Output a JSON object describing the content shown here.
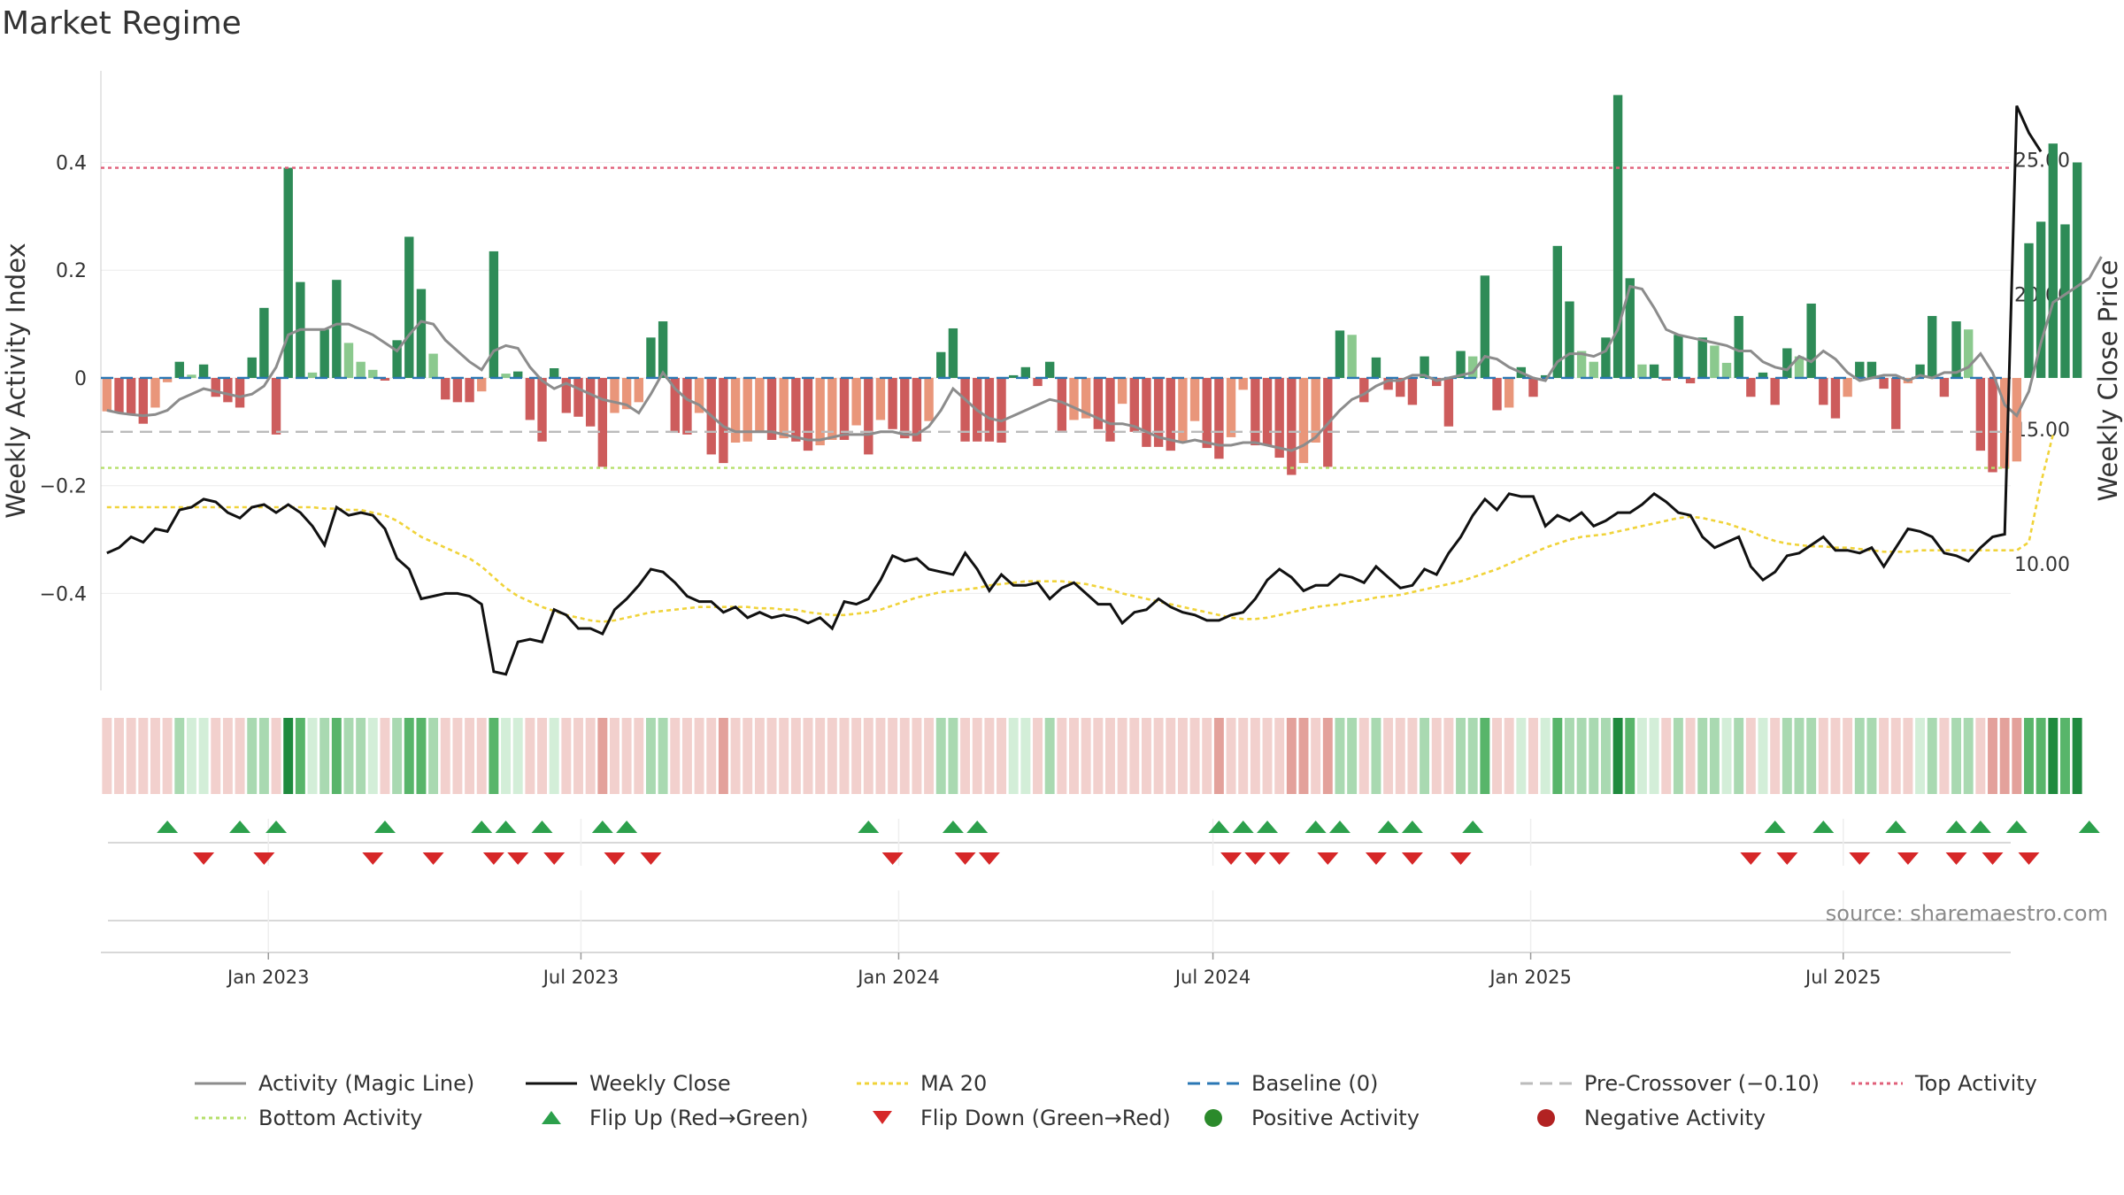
{
  "chart_data": {
    "type": "bar",
    "title": "Market Regime",
    "ylabel": "Weekly Activity Index",
    "y2label": "Weekly Close Price",
    "ylim": [
      -0.58,
      0.57
    ],
    "y2lim": [
      5.3,
      28.3
    ],
    "yticks": [
      {
        "v": 0.4,
        "t": "0.4"
      },
      {
        "v": 0.2,
        "t": "0.2"
      },
      {
        "v": 0,
        "t": "0"
      },
      {
        "v": -0.2,
        "t": "−0.2"
      },
      {
        "v": -0.4,
        "t": "−0.4"
      }
    ],
    "y2ticks": [
      {
        "v": 25,
        "t": "25.00"
      },
      {
        "v": 20,
        "t": "20.00"
      },
      {
        "v": 15,
        "t": "15.00"
      },
      {
        "v": 10,
        "t": "10.00"
      }
    ],
    "x_start": "2022-09-26",
    "x_end": "2025-10-06",
    "xticks": [
      {
        "d": "2023-01-01",
        "t": "Jan 2023"
      },
      {
        "d": "2023-07-01",
        "t": "Jul 2023"
      },
      {
        "d": "2024-01-01",
        "t": "Jan 2024"
      },
      {
        "d": "2024-07-01",
        "t": "Jul 2024"
      },
      {
        "d": "2025-01-01",
        "t": "Jan 2025"
      },
      {
        "d": "2025-07-01",
        "t": "Jul 2025"
      }
    ],
    "top_activity": 0.39,
    "bottom_activity": -0.167,
    "pre_crossover": -0.1,
    "baseline": 0,
    "activity": [
      -0.062,
      -0.065,
      -0.068,
      -0.085,
      -0.055,
      -0.008,
      0.03,
      0.006,
      0.025,
      -0.035,
      -0.045,
      -0.055,
      0.038,
      0.13,
      -0.105,
      0.39,
      0.178,
      0.01,
      0.09,
      0.182,
      0.065,
      0.03,
      0.015,
      -0.005,
      0.07,
      0.262,
      0.165,
      0.045,
      -0.04,
      -0.045,
      -0.045,
      -0.025,
      0.235,
      0.008,
      0.012,
      -0.078,
      -0.118,
      0.018,
      -0.065,
      -0.072,
      -0.09,
      -0.165,
      -0.065,
      -0.058,
      -0.045,
      0.075,
      0.105,
      -0.102,
      -0.105,
      -0.065,
      -0.142,
      -0.158,
      -0.12,
      -0.118,
      -0.098,
      -0.115,
      -0.112,
      -0.118,
      -0.135,
      -0.125,
      -0.115,
      -0.115,
      -0.088,
      -0.142,
      -0.078,
      -0.095,
      -0.112,
      -0.118,
      -0.08,
      0.048,
      0.092,
      -0.118,
      -0.118,
      -0.118,
      -0.12,
      0.005,
      0.02,
      -0.015,
      0.03,
      -0.098,
      -0.078,
      -0.075,
      -0.095,
      -0.118,
      -0.048,
      -0.1,
      -0.128,
      -0.128,
      -0.135,
      -0.12,
      -0.08,
      -0.13,
      -0.15,
      -0.11,
      -0.022,
      -0.125,
      -0.125,
      -0.148,
      -0.18,
      -0.158,
      -0.12,
      -0.165,
      0.088,
      0.08,
      -0.045,
      0.038,
      -0.022,
      -0.035,
      -0.05,
      0.04,
      -0.015,
      -0.09,
      0.05,
      0.04,
      0.19,
      -0.06,
      -0.055,
      0.02,
      -0.035,
      0.005,
      0.245,
      0.142,
      0.05,
      0.03,
      0.075,
      0.525,
      0.185,
      0.025,
      0.025,
      -0.005,
      0.08,
      -0.01,
      0.075,
      0.06,
      0.028,
      0.115,
      -0.035,
      0.01,
      -0.05,
      0.055,
      0.04,
      0.138,
      -0.05,
      -0.075,
      -0.035,
      0.03,
      0.03,
      -0.02,
      -0.095,
      -0.01,
      0.025,
      0.115,
      -0.035,
      0.105,
      0.09,
      -0.135,
      -0.175,
      -0.168,
      -0.155,
      0.25,
      0.29,
      0.435,
      0.285,
      0.4
    ],
    "magic_line": [
      -0.06,
      -0.065,
      -0.068,
      -0.07,
      -0.068,
      -0.06,
      -0.04,
      -0.03,
      -0.02,
      -0.025,
      -0.03,
      -0.035,
      -0.03,
      -0.015,
      0.02,
      0.08,
      0.09,
      0.09,
      0.09,
      0.1,
      0.1,
      0.09,
      0.08,
      0.065,
      0.05,
      0.08,
      0.105,
      0.1,
      0.07,
      0.05,
      0.03,
      0.015,
      0.05,
      0.06,
      0.055,
      0.02,
      -0.005,
      -0.02,
      -0.01,
      -0.02,
      -0.03,
      -0.04,
      -0.045,
      -0.05,
      -0.065,
      -0.03,
      0.01,
      -0.02,
      -0.04,
      -0.05,
      -0.07,
      -0.09,
      -0.1,
      -0.1,
      -0.1,
      -0.1,
      -0.105,
      -0.11,
      -0.115,
      -0.115,
      -0.11,
      -0.105,
      -0.105,
      -0.105,
      -0.1,
      -0.1,
      -0.105,
      -0.105,
      -0.09,
      -0.06,
      -0.02,
      -0.04,
      -0.06,
      -0.075,
      -0.08,
      -0.07,
      -0.06,
      -0.05,
      -0.04,
      -0.045,
      -0.055,
      -0.065,
      -0.075,
      -0.085,
      -0.085,
      -0.09,
      -0.1,
      -0.11,
      -0.115,
      -0.12,
      -0.115,
      -0.12,
      -0.125,
      -0.125,
      -0.12,
      -0.12,
      -0.125,
      -0.13,
      -0.135,
      -0.125,
      -0.11,
      -0.085,
      -0.06,
      -0.04,
      -0.03,
      -0.015,
      -0.005,
      -0.005,
      0.005,
      0.005,
      -0.005,
      0,
      0.005,
      0.01,
      0.04,
      0.035,
      0.02,
      0.01,
      0,
      -0.005,
      0.03,
      0.045,
      0.045,
      0.04,
      0.05,
      0.09,
      0.17,
      0.165,
      0.13,
      0.09,
      0.08,
      0.075,
      0.07,
      0.065,
      0.06,
      0.05,
      0.05,
      0.03,
      0.02,
      0.015,
      0.04,
      0.03,
      0.05,
      0.035,
      0.01,
      -0.005,
      0,
      0.005,
      0.005,
      -0.005,
      0.005,
      0,
      0.01,
      0.01,
      0.02,
      0.045,
      0.01,
      -0.05,
      -0.07,
      -0.025,
      0.065,
      0.14,
      0.155,
      0.17,
      0.185,
      0.225
    ],
    "weekly_close": [
      10.4,
      10.6,
      11.0,
      10.8,
      11.3,
      11.2,
      12.0,
      12.1,
      12.4,
      12.3,
      11.9,
      11.7,
      12.1,
      12.2,
      11.9,
      12.2,
      11.9,
      11.4,
      10.7,
      12.1,
      11.8,
      11.9,
      11.8,
      11.3,
      10.2,
      9.8,
      8.7,
      8.8,
      8.9,
      8.9,
      8.8,
      8.5,
      6.0,
      5.9,
      7.1,
      7.2,
      7.1,
      8.3,
      8.1,
      7.6,
      7.6,
      7.4,
      8.3,
      8.7,
      9.2,
      9.8,
      9.7,
      9.3,
      8.8,
      8.6,
      8.6,
      8.2,
      8.4,
      8.0,
      8.2,
      8.0,
      8.1,
      8.0,
      7.8,
      8.0,
      7.6,
      8.6,
      8.5,
      8.7,
      9.4,
      10.3,
      10.1,
      10.2,
      9.8,
      9.7,
      9.6,
      10.4,
      9.8,
      9.0,
      9.6,
      9.2,
      9.2,
      9.3,
      8.7,
      9.1,
      9.3,
      8.9,
      8.5,
      8.5,
      7.8,
      8.2,
      8.3,
      8.7,
      8.4,
      8.2,
      8.1,
      7.9,
      7.9,
      8.1,
      8.2,
      8.7,
      9.4,
      9.8,
      9.5,
      9.0,
      9.2,
      9.2,
      9.6,
      9.5,
      9.3,
      9.9,
      9.5,
      9.1,
      9.2,
      9.8,
      9.6,
      10.4,
      11.0,
      11.8,
      12.4,
      12.0,
      12.6,
      12.5,
      12.5,
      11.4,
      11.8,
      11.6,
      11.9,
      11.4,
      11.6,
      11.9,
      11.9,
      12.2,
      12.6,
      12.3,
      11.9,
      11.8,
      11.0,
      10.6,
      10.8,
      11.0,
      9.9,
      9.4,
      9.7,
      10.3,
      10.4,
      10.7,
      11.0,
      10.5,
      10.5,
      10.4,
      10.6,
      9.9,
      10.6,
      11.3,
      11.2,
      11.0,
      10.4,
      10.3,
      10.1,
      10.6,
      11.0,
      11.1,
      27.0,
      26.0,
      25.3
    ],
    "ma20": [
      12.1,
      12.1,
      12.1,
      12.1,
      12.1,
      12.1,
      12.1,
      12.1,
      12.1,
      12.1,
      12.1,
      12.1,
      12.1,
      12.1,
      12.1,
      12.1,
      12.1,
      12.1,
      12.05,
      12.05,
      12.0,
      12.0,
      11.9,
      11.8,
      11.6,
      11.3,
      11.0,
      10.8,
      10.6,
      10.4,
      10.2,
      9.9,
      9.5,
      9.1,
      8.8,
      8.6,
      8.4,
      8.25,
      8.1,
      8.0,
      7.9,
      7.85,
      7.9,
      8.0,
      8.1,
      8.2,
      8.25,
      8.3,
      8.35,
      8.4,
      8.4,
      8.4,
      8.4,
      8.4,
      8.35,
      8.35,
      8.3,
      8.3,
      8.2,
      8.15,
      8.1,
      8.1,
      8.15,
      8.2,
      8.3,
      8.45,
      8.6,
      8.75,
      8.85,
      8.95,
      9.0,
      9.05,
      9.1,
      9.2,
      9.25,
      9.3,
      9.35,
      9.35,
      9.35,
      9.35,
      9.3,
      9.25,
      9.15,
      9.05,
      8.9,
      8.8,
      8.7,
      8.6,
      8.5,
      8.4,
      8.3,
      8.2,
      8.1,
      8.0,
      7.95,
      7.95,
      8.0,
      8.1,
      8.2,
      8.3,
      8.4,
      8.45,
      8.5,
      8.6,
      8.65,
      8.75,
      8.8,
      8.85,
      8.95,
      9.05,
      9.15,
      9.25,
      9.35,
      9.5,
      9.65,
      9.8,
      10.0,
      10.2,
      10.4,
      10.6,
      10.75,
      10.9,
      11.0,
      11.05,
      11.1,
      11.2,
      11.3,
      11.4,
      11.5,
      11.6,
      11.7,
      11.75,
      11.7,
      11.6,
      11.5,
      11.35,
      11.2,
      11.0,
      10.85,
      10.75,
      10.7,
      10.65,
      10.65,
      10.6,
      10.6,
      10.55,
      10.5,
      10.45,
      10.45,
      10.45,
      10.5,
      10.5,
      10.5,
      10.5,
      10.5,
      10.5,
      10.5,
      10.5,
      10.5,
      10.8,
      13.0,
      14.8
    ],
    "flip_up_weeks": [
      5,
      11,
      14,
      23,
      31,
      33,
      36,
      41,
      43,
      63,
      70,
      72,
      92,
      94,
      96,
      100,
      102,
      106,
      108,
      113,
      138,
      142,
      148,
      153,
      155,
      158,
      164
    ],
    "flip_down_weeks": [
      8,
      13,
      22,
      27,
      32,
      34,
      37,
      42,
      45,
      65,
      71,
      73,
      93,
      95,
      97,
      101,
      105,
      108,
      112,
      136,
      139,
      145,
      149,
      153,
      156,
      159
    ],
    "regime_colors": {
      "pos_strong": "#1f8a3e",
      "pos_mid": "#58b56a",
      "pos_weak": "#a9d9b1",
      "pos_faint": "#d3eed8",
      "neg_weak": "#f2d0cd",
      "neg_mid": "#e3a19b",
      "bar_pos": "#2e8b57",
      "bar_pos_light": "#8bc98e",
      "bar_neg": "#cd5c5c",
      "bar_neg_light": "#e9967a",
      "flip_up": "#2ca04c",
      "flip_down": "#d62728"
    },
    "source": "source: sharemaestro.com",
    "legend": [
      {
        "label": "Activity (Magic Line)",
        "kind": "line",
        "color": "#8c8c8c",
        "dash": ""
      },
      {
        "label": "Weekly Close",
        "kind": "line",
        "color": "#111111",
        "dash": ""
      },
      {
        "label": "MA 20",
        "kind": "line",
        "color": "#f0d33a",
        "dash": "5,4"
      },
      {
        "label": "Baseline (0)",
        "kind": "line",
        "color": "#2a77b4",
        "dash": "14,8"
      },
      {
        "label": "Pre-Crossover (−0.10)",
        "kind": "line",
        "color": "#bbbbbb",
        "dash": "14,8"
      },
      {
        "label": "Top Activity",
        "kind": "line",
        "color": "#e0607a",
        "dash": "4,4"
      },
      {
        "label": "Bottom Activity",
        "kind": "line",
        "color": "#b5df6a",
        "dash": "4,4"
      },
      {
        "label": "Flip Up (Red→Green)",
        "kind": "up",
        "color": "#2ca04c",
        "dash": ""
      },
      {
        "label": "Flip Down (Green→Red)",
        "kind": "down",
        "color": "#d62728",
        "dash": ""
      },
      {
        "label": "Positive Activity",
        "kind": "dot",
        "color": "#2b8a2b",
        "dash": ""
      },
      {
        "label": "Negative Activity",
        "kind": "dot",
        "color": "#b22222",
        "dash": ""
      }
    ]
  }
}
